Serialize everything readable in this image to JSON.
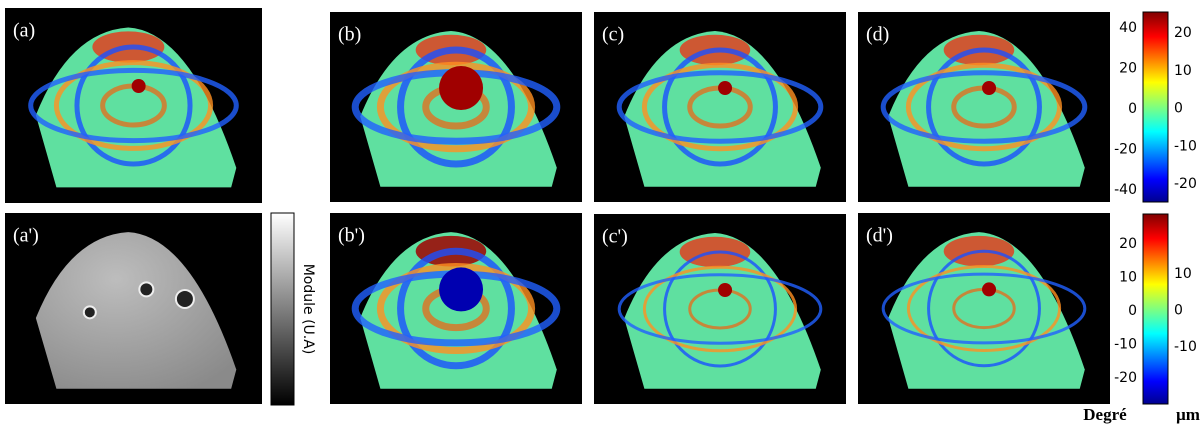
{
  "panels": [
    {
      "label": "(a)"
    },
    {
      "label": "(b)"
    },
    {
      "label": "(c)"
    },
    {
      "label": "(d)"
    },
    {
      "label": "(a')"
    },
    {
      "label": "(b')"
    },
    {
      "label": "(c')"
    },
    {
      "label": "(d')"
    }
  ],
  "grayscale_colorbar": {
    "label": "Module (U.A)"
  },
  "colorbars": [
    {
      "left_ticks": [
        40,
        20,
        0,
        -20,
        -40
      ],
      "right_ticks": [
        20,
        10,
        0,
        -10,
        -20
      ]
    },
    {
      "left_ticks": [
        20,
        10,
        0,
        -10,
        -20
      ],
      "right_ticks": [
        10,
        0,
        -10
      ]
    }
  ],
  "units": {
    "left": "Degré",
    "right": "µm"
  }
}
